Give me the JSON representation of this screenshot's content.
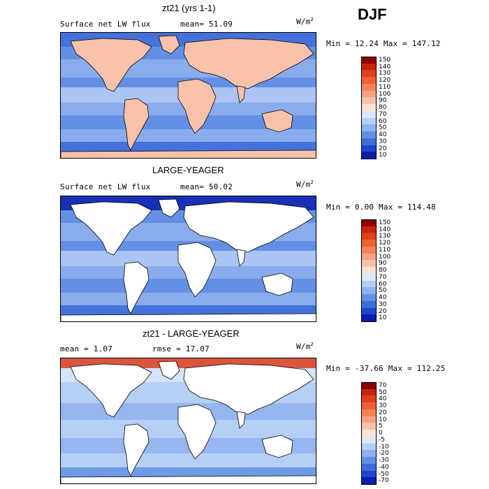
{
  "season": "DJF",
  "colors": {
    "land": "#ffffff",
    "coast": "#000000"
  },
  "panels": [
    {
      "title": "zt21 (yrs 1-1)",
      "field": "Surface net LW flux",
      "stat": "mean=  51.09",
      "units": "W/m",
      "units_sup": "2",
      "minmax": "Min =  12.24 Max = 147.12",
      "ocean_only": false
    },
    {
      "title": "LARGE-YEAGER",
      "field": "Surface net LW flux",
      "stat": "mean=  50.02",
      "units": "W/m",
      "units_sup": "2",
      "minmax": "Min =   0.00 Max = 114.48",
      "ocean_only": true
    },
    {
      "title": "zt21 - LARGE-YEAGER",
      "field": "mean =   1.07",
      "stat": "rmse =  17.07",
      "units": "W/m",
      "units_sup": "2",
      "minmax": "Min = -37.66 Max = 112.25",
      "ocean_only": true
    }
  ],
  "chart_data": [
    {
      "type": "heatmap",
      "title": "zt21 (yrs 1-1)",
      "subtitle": "Surface net LW flux",
      "units": "W/m2",
      "mean": 51.09,
      "min": 12.24,
      "max": 147.12,
      "colorbar_levels": [
        "150",
        "140",
        "130",
        "120",
        "110",
        "100",
        "90",
        "80",
        "70",
        "60",
        "50",
        "40",
        "30",
        "20",
        "10"
      ],
      "colorbar_colors": [
        "#8b0000",
        "#c8230c",
        "#e0401c",
        "#ee6034",
        "#f5825a",
        "#f7a283",
        "#f8c2aa",
        "#fbe2d4",
        "#dbe8fb",
        "#b6cff6",
        "#8fb1ee",
        "#6390e5",
        "#3e6ddb",
        "#1c46cf",
        "#0a1eae"
      ]
    },
    {
      "type": "heatmap",
      "title": "LARGE-YEAGER",
      "subtitle": "Surface net LW flux",
      "units": "W/m2",
      "mean": 50.02,
      "min": 0.0,
      "max": 114.48,
      "colorbar_levels": [
        "150",
        "140",
        "130",
        "120",
        "110",
        "100",
        "90",
        "80",
        "70",
        "60",
        "50",
        "40",
        "30",
        "20",
        "10"
      ],
      "colorbar_colors": [
        "#8b0000",
        "#c8230c",
        "#e0401c",
        "#ee6034",
        "#f5825a",
        "#f7a283",
        "#f8c2aa",
        "#fbe2d4",
        "#dbe8fb",
        "#b6cff6",
        "#8fb1ee",
        "#6390e5",
        "#3e6ddb",
        "#1c46cf",
        "#0a1eae"
      ]
    },
    {
      "type": "heatmap",
      "title": "zt21 - LARGE-YEAGER",
      "units": "W/m2",
      "mean": 1.07,
      "rmse": 17.07,
      "min": -37.66,
      "max": 112.25,
      "colorbar_levels": [
        "70",
        "50",
        "40",
        "30",
        "20",
        "10",
        "5",
        "0",
        "-5",
        "-10",
        "-20",
        "-30",
        "-40",
        "-50",
        "-70"
      ],
      "colorbar_colors": [
        "#8b0000",
        "#c8230c",
        "#e0401c",
        "#ee6034",
        "#f5825a",
        "#f7a283",
        "#f8c2aa",
        "#fbe2d4",
        "#dbe8fb",
        "#b6cff6",
        "#8fb1ee",
        "#6390e5",
        "#3e6ddb",
        "#1c46cf",
        "#0a1eae"
      ]
    }
  ]
}
